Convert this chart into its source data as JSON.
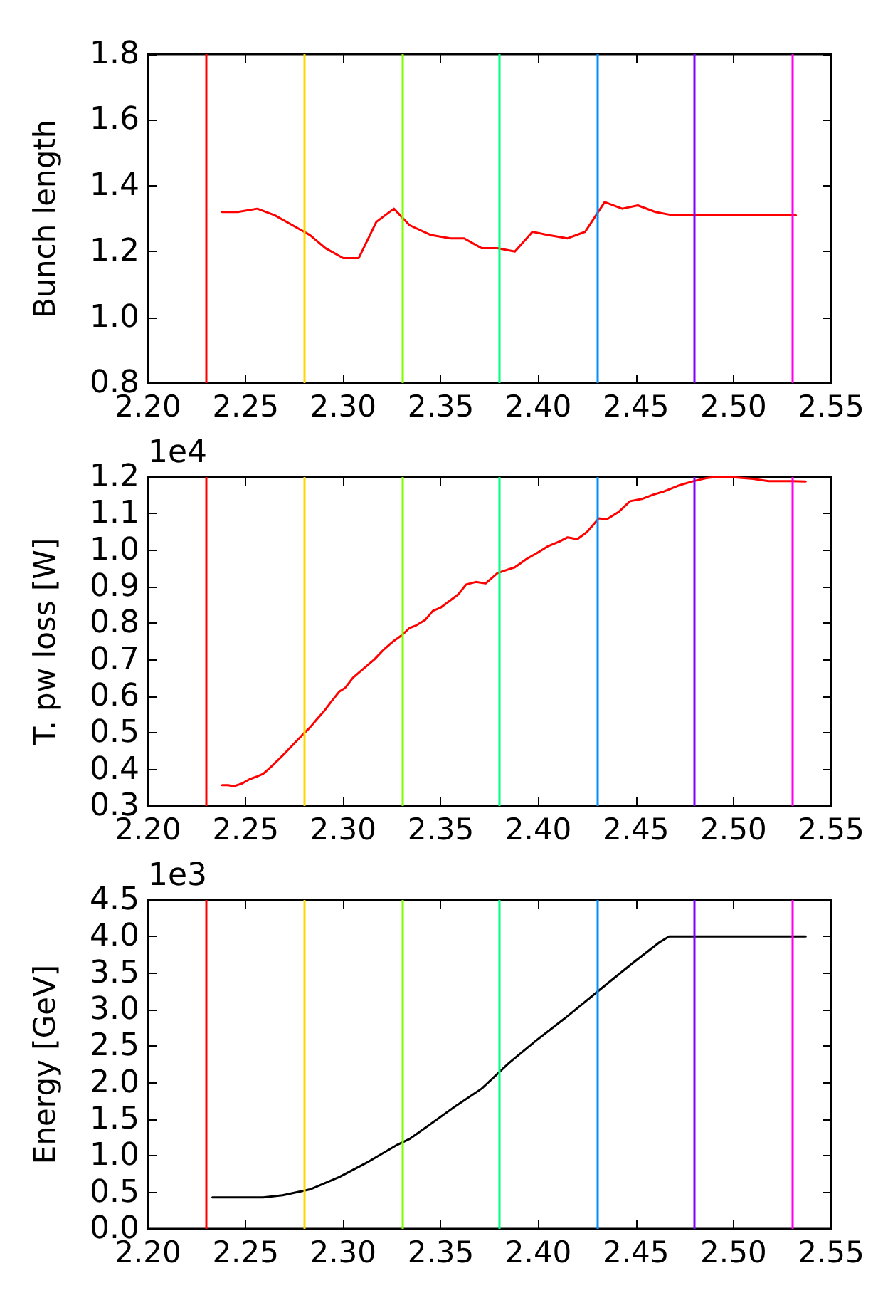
{
  "chart_data": [
    {
      "type": "line",
      "ylabel": "Bunch length",
      "xlim": [
        2.2,
        2.55
      ],
      "xticks": [
        {
          "value": 2.2,
          "label": "2.20"
        },
        2.25,
        {
          "value": 2.3,
          "label": "2.30"
        },
        2.35,
        {
          "value": 2.4,
          "label": "2.40"
        },
        2.45,
        {
          "value": 2.5,
          "label": "2.50"
        },
        2.55
      ],
      "ylim": [
        0.8,
        1.8
      ],
      "yticks": [
        0.8,
        {
          "value": 1,
          "label": "1.0"
        },
        1.2,
        1.4,
        1.6,
        1.8
      ],
      "grid": false,
      "marker": "none",
      "series": [
        {
          "color": "#ff0000",
          "x": [
            2.238,
            2.246,
            2.256,
            2.265,
            2.274,
            2.283,
            2.291,
            2.3,
            2.308,
            2.317,
            2.326,
            2.334,
            2.345,
            2.355,
            2.362,
            2.371,
            2.379,
            2.388,
            2.397,
            2.405,
            2.415,
            2.424,
            2.434,
            2.443,
            2.451,
            2.46,
            2.469,
            2.486,
            2.512,
            2.532
          ],
          "values": [
            1.32,
            1.32,
            1.33,
            1.31,
            1.28,
            1.25,
            1.21,
            1.18,
            1.18,
            1.29,
            1.33,
            1.28,
            1.25,
            1.24,
            1.24,
            1.21,
            1.21,
            1.2,
            1.26,
            1.25,
            1.24,
            1.26,
            1.35,
            1.33,
            1.34,
            1.32,
            1.31,
            1.31,
            1.31,
            1.31
          ]
        }
      ],
      "ref_lines": [
        {
          "axis": "x",
          "value": 2.23,
          "color": "#ff0000"
        },
        {
          "axis": "x",
          "value": 2.28,
          "color": "#ffd700"
        },
        {
          "axis": "x",
          "value": 2.33,
          "color": "#80ff00"
        },
        {
          "axis": "x",
          "value": 2.38,
          "color": "#00ff80"
        },
        {
          "axis": "x",
          "value": 2.43,
          "color": "#0090ff"
        },
        {
          "axis": "x",
          "value": 2.48,
          "color": "#8000ff"
        },
        {
          "axis": "x",
          "value": 2.53,
          "color": "#ff00ee"
        }
      ]
    },
    {
      "type": "line",
      "ylabel": "T. pw loss [W]",
      "annotations": [
        "1e4"
      ],
      "xlim": [
        2.2,
        2.55
      ],
      "xticks": [
        {
          "value": 2.2,
          "label": "2.20"
        },
        2.25,
        {
          "value": 2.3,
          "label": "2.30"
        },
        2.35,
        {
          "value": 2.4,
          "label": "2.40"
        },
        2.45,
        {
          "value": 2.5,
          "label": "2.50"
        },
        2.55
      ],
      "ylim": [
        0.3,
        1.2
      ],
      "yticks": [
        0.3,
        0.4,
        0.5,
        0.6,
        0.7,
        0.8,
        0.9,
        {
          "value": 1,
          "label": "1.0"
        },
        1.1,
        1.2
      ],
      "grid": false,
      "marker": "none",
      "series": [
        {
          "color": "#ff0000",
          "x": [
            2.238,
            2.241,
            2.244,
            2.248,
            2.252,
            2.256,
            2.259,
            2.263,
            2.269,
            2.274,
            2.279,
            2.283,
            2.287,
            2.29,
            2.294,
            2.298,
            2.301,
            2.305,
            2.31,
            2.316,
            2.321,
            2.326,
            2.33,
            2.334,
            2.337,
            2.342,
            2.346,
            2.35,
            2.355,
            2.359,
            2.363,
            2.368,
            2.373,
            2.379,
            2.385,
            2.388,
            2.394,
            2.399,
            2.405,
            2.411,
            2.415,
            2.42,
            2.425,
            2.431,
            2.435,
            2.441,
            2.447,
            2.453,
            2.459,
            2.464,
            2.472,
            2.479,
            2.486,
            2.489,
            2.501,
            2.51,
            2.518,
            2.53,
            2.537
          ],
          "values": [
            0.357,
            0.357,
            0.354,
            0.361,
            0.373,
            0.381,
            0.388,
            0.407,
            0.438,
            0.466,
            0.494,
            0.515,
            0.54,
            0.558,
            0.586,
            0.613,
            0.623,
            0.651,
            0.674,
            0.701,
            0.729,
            0.752,
            0.767,
            0.787,
            0.793,
            0.809,
            0.834,
            0.843,
            0.863,
            0.879,
            0.906,
            0.913,
            0.909,
            0.937,
            0.948,
            0.953,
            0.976,
            0.991,
            1.011,
            1.024,
            1.035,
            1.03,
            1.05,
            1.087,
            1.084,
            1.104,
            1.134,
            1.14,
            1.152,
            1.16,
            1.177,
            1.188,
            1.197,
            1.199,
            1.199,
            1.195,
            1.189,
            1.189,
            1.188
          ]
        }
      ],
      "ref_lines": [
        {
          "axis": "x",
          "value": 2.23,
          "color": "#ff0000"
        },
        {
          "axis": "x",
          "value": 2.28,
          "color": "#ffd700"
        },
        {
          "axis": "x",
          "value": 2.33,
          "color": "#80ff00"
        },
        {
          "axis": "x",
          "value": 2.38,
          "color": "#00ff80"
        },
        {
          "axis": "x",
          "value": 2.43,
          "color": "#0090ff"
        },
        {
          "axis": "x",
          "value": 2.48,
          "color": "#8000ff"
        },
        {
          "axis": "x",
          "value": 2.53,
          "color": "#ff00ee"
        }
      ]
    },
    {
      "type": "line",
      "ylabel": "Energy [GeV]",
      "annotations": [
        "1e3"
      ],
      "xlim": [
        2.2,
        2.55
      ],
      "xticks": [
        {
          "value": 2.2,
          "label": "2.20"
        },
        2.25,
        {
          "value": 2.3,
          "label": "2.30"
        },
        2.35,
        {
          "value": 2.4,
          "label": "2.40"
        },
        2.45,
        {
          "value": 2.5,
          "label": "2.50"
        },
        2.55
      ],
      "ylim": [
        0,
        4.5
      ],
      "yticks": [
        {
          "value": 0,
          "label": "0.0"
        },
        0.5,
        {
          "value": 1,
          "label": "1.0"
        },
        1.5,
        {
          "value": 2,
          "label": "2.0"
        },
        2.5,
        {
          "value": 3,
          "label": "3.0"
        },
        3.5,
        {
          "value": 4,
          "label": "4.0"
        },
        4.5
      ],
      "grid": false,
      "marker": "none",
      "series": [
        {
          "color": "#000000",
          "x": [
            2.233,
            2.259,
            2.269,
            2.283,
            2.298,
            2.313,
            2.327,
            2.334,
            2.345,
            2.356,
            2.371,
            2.385,
            2.399,
            2.414,
            2.436,
            2.449,
            2.462,
            2.467,
            2.486,
            2.537
          ],
          "values": [
            0.43,
            0.43,
            0.46,
            0.54,
            0.71,
            0.92,
            1.14,
            1.23,
            1.44,
            1.65,
            1.92,
            2.27,
            2.58,
            2.89,
            3.37,
            3.65,
            3.92,
            4.0,
            4.0,
            4.0
          ]
        }
      ],
      "ref_lines": [
        {
          "axis": "x",
          "value": 2.23,
          "color": "#ff0000"
        },
        {
          "axis": "x",
          "value": 2.28,
          "color": "#ffd700"
        },
        {
          "axis": "x",
          "value": 2.33,
          "color": "#80ff00"
        },
        {
          "axis": "x",
          "value": 2.38,
          "color": "#00ff80"
        },
        {
          "axis": "x",
          "value": 2.43,
          "color": "#0090ff"
        },
        {
          "axis": "x",
          "value": 2.48,
          "color": "#8000ff"
        },
        {
          "axis": "x",
          "value": 2.53,
          "color": "#ff00ee"
        }
      ]
    }
  ]
}
